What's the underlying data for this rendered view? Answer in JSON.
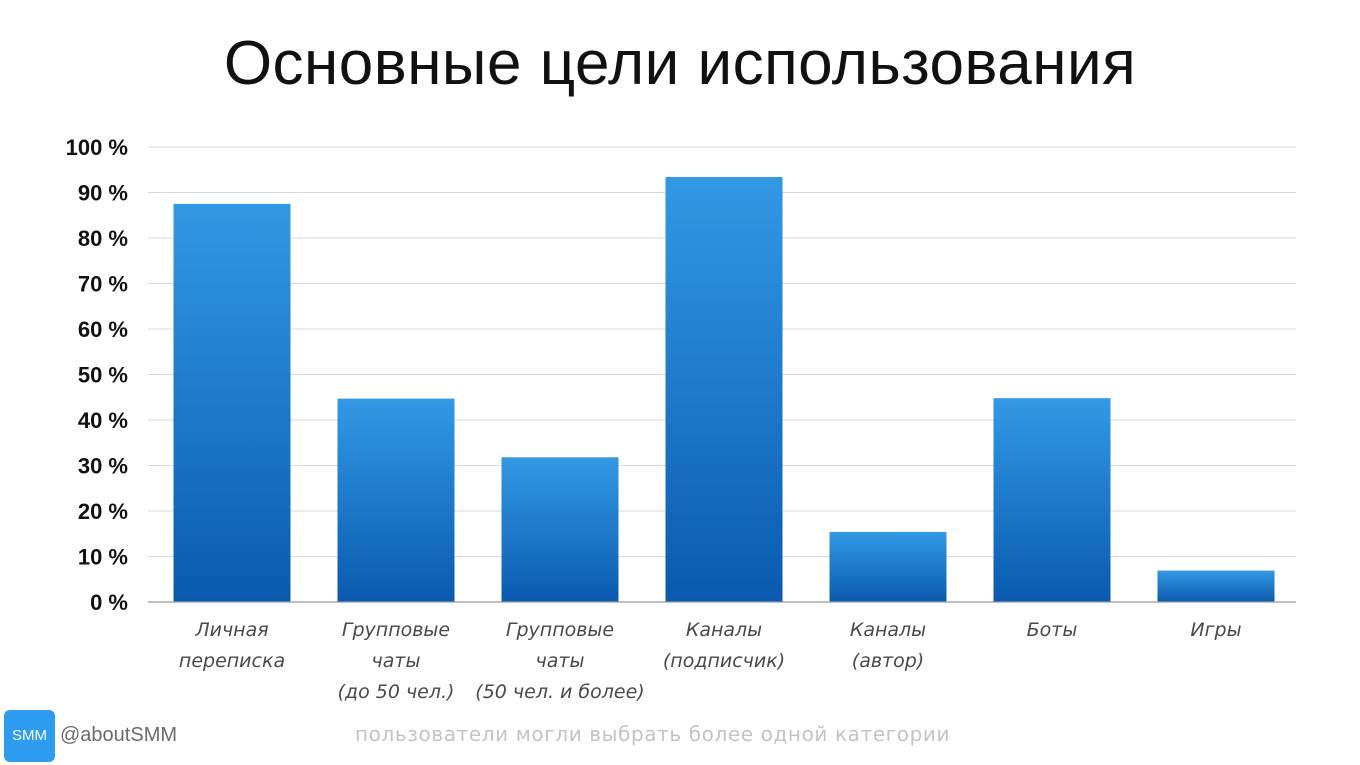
{
  "chart_data": {
    "type": "bar",
    "title": "Основные цели использования",
    "categories": [
      [
        "Личная",
        "переписка"
      ],
      [
        "Групповые",
        "чаты",
        "(до 50 чел.)"
      ],
      [
        "Групповые",
        "чаты",
        "(50 чел. и более)"
      ],
      [
        "Каналы",
        "(подписчик)"
      ],
      [
        "Каналы",
        "(автор)"
      ],
      [
        "Боты"
      ],
      [
        "Игры"
      ]
    ],
    "values": [
      87.5,
      44.7,
      31.8,
      93.4,
      15.4,
      44.8,
      6.9
    ],
    "yticks": [
      "0 %",
      "10 %",
      "20 %",
      "30 %",
      "40 %",
      "50 %",
      "60 %",
      "70 %",
      "80 %",
      "90 %",
      "100 %"
    ],
    "ylim": [
      0,
      100
    ],
    "grid": true,
    "colors": {
      "bar_top": "#3399e3",
      "bar_bottom": "#0a5ab0"
    }
  },
  "footer": {
    "logo_text": "SMM",
    "handle": "@aboutSMM",
    "note": "пользователи могли выбрать более одной категории"
  }
}
